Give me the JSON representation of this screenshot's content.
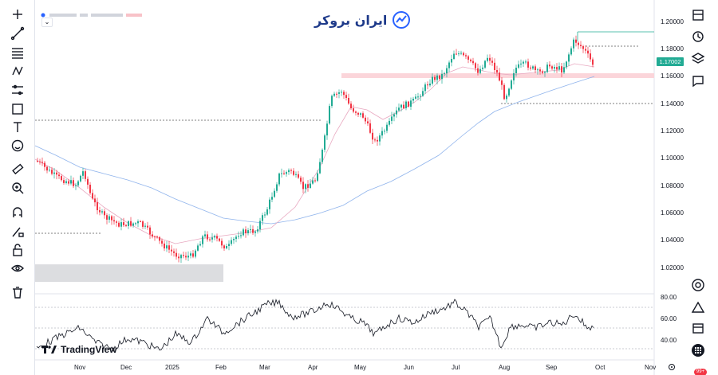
{
  "watermark": {
    "brand_text": "ایران بروکر"
  },
  "tradingview_logo": {
    "text": "TradingView"
  },
  "header": {
    "collapse_glyph": "⌄"
  },
  "price_axis": {
    "labels": [
      "1.20000",
      "1.18000",
      "1.16000",
      "1.14000",
      "1.12000",
      "1.10000",
      "1.08000",
      "1.06000",
      "1.04000",
      "1.02000"
    ],
    "last_price": "1.17002",
    "last_price_color": "#22ab94"
  },
  "rsi_axis": {
    "labels": [
      "80.00",
      "60.00",
      "40.00"
    ]
  },
  "time_axis": {
    "labels": [
      "Nov",
      "Dec",
      "2025",
      "Feb",
      "Mar",
      "Apr",
      "May",
      "Jun",
      "Jul",
      "Aug",
      "Sep",
      "Oct",
      "Nov"
    ]
  },
  "notifications": {
    "badge_text": "99+"
  },
  "left_tools": [
    {
      "icon": "cursor-icon"
    },
    {
      "icon": "trend-line-icon"
    },
    {
      "icon": "fib-retracement-icon"
    },
    {
      "icon": "pattern-icon"
    },
    {
      "icon": "prediction-icon"
    },
    {
      "icon": "rectangle-icon"
    },
    {
      "icon": "text-icon"
    },
    {
      "icon": "emoji-icon"
    },
    {
      "icon": "ruler-icon"
    },
    {
      "icon": "zoom-icon"
    },
    {
      "icon": "magnet-icon"
    },
    {
      "icon": "pencil-lock-icon"
    },
    {
      "icon": "lock-icon"
    },
    {
      "icon": "eye-icon"
    },
    {
      "icon": "trash-icon"
    }
  ],
  "right_tools": [
    {
      "icon": "watchlist-icon"
    },
    {
      "icon": "alert-clock-icon"
    },
    {
      "icon": "layers-icon"
    },
    {
      "icon": "chat-icon"
    },
    {
      "icon": "target-icon"
    },
    {
      "icon": "triangle-up-icon"
    },
    {
      "icon": "calendar-icon"
    },
    {
      "icon": "apps-grid-icon"
    }
  ],
  "colors": {
    "up": "#22ab94",
    "down": "#f23645",
    "ma_fast": "#e8a8c0",
    "ma_slow": "#90b4ec",
    "support_zone": "#fbd5da",
    "demand_zone": "#dcdde0",
    "rsi_line": "#131722"
  }
}
